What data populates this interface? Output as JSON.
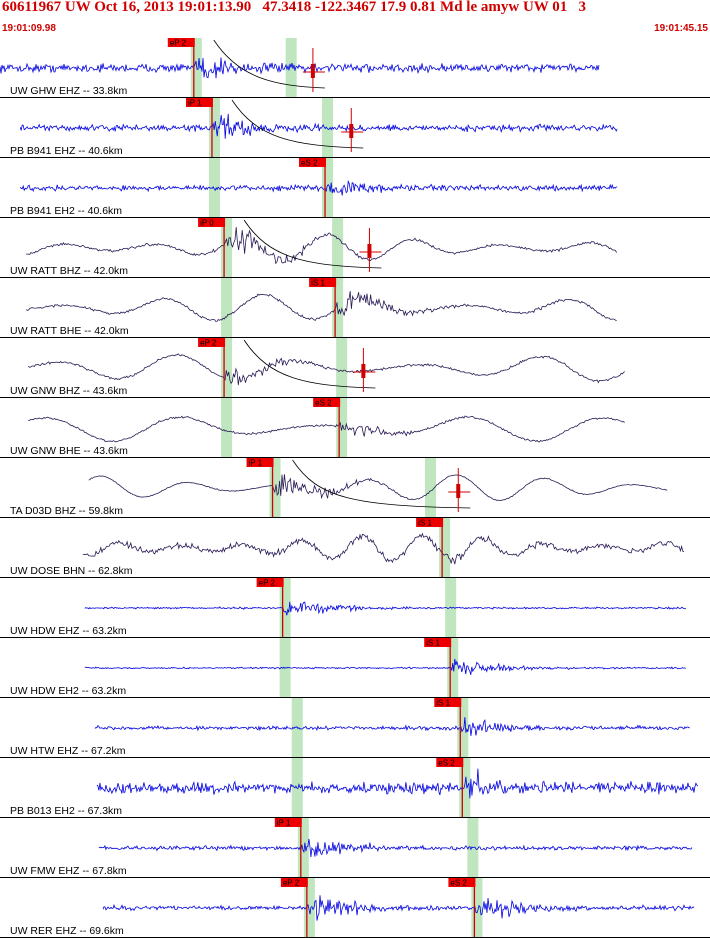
{
  "header": {
    "title": "60611967 UW Oct 16, 2013 19:01:13.90   47.3418 -122.3467 17.9 0.81 Md le amyw UW 01   3",
    "time_start": "19:01:09.98",
    "time_end": "19:01:45.15"
  },
  "colors": {
    "header_text": "#d00000",
    "trace_short_period": "#0000e0",
    "trace_broadband": "#2a1a55",
    "pick_line": "#d00000",
    "pick_box": "#ee0000",
    "window_band": "#bfe6bf"
  },
  "chart_data": {
    "type": "seismogram",
    "x_unit": "seconds after 19:01:09.98",
    "x_range": [
      0,
      35.17
    ],
    "traces": [
      {
        "label": "UW GHW EHZ -- 33.8km",
        "type": "short-period",
        "start": 0.0,
        "end": 29.7,
        "amp": 0.8,
        "bg_noise": 0.55,
        "picks": [
          {
            "label": "eP 2",
            "t": 9.6
          },
          {
            "label": "",
            "t": 15.5,
            "marker": "amplitude"
          }
        ],
        "windows": [
          9.6,
          14.3
        ],
        "curve": true
      },
      {
        "label": "PB B941 EHZ -- 40.6km",
        "type": "short-period",
        "start": 1.0,
        "end": 30.6,
        "amp": 0.75,
        "bg_noise": 0.4,
        "picks": [
          {
            "label": "iP 1",
            "t": 10.5
          },
          {
            "label": "",
            "t": 17.4,
            "marker": "amplitude"
          }
        ],
        "windows": [
          10.5,
          16.1
        ],
        "curve": true
      },
      {
        "label": "PB B941 EH2 -- 40.6km",
        "type": "short-period",
        "start": 1.0,
        "end": 30.6,
        "amp": 0.6,
        "bg_noise": 0.35,
        "picks": [
          {
            "label": "eS 2",
            "t": 16.1
          }
        ],
        "windows": [
          10.5,
          16.1
        ],
        "curve": false
      },
      {
        "label": "UW RATT BHZ -- 42.0km",
        "type": "broadband",
        "start": 1.3,
        "end": 30.6,
        "amp": 0.9,
        "bg_noise": 0.08,
        "period": 4.3,
        "picks": [
          {
            "label": "iP 0",
            "t": 11.1
          },
          {
            "label": "",
            "t": 18.3,
            "marker": "amplitude"
          }
        ],
        "windows": [
          11.1,
          16.6
        ],
        "curve": true
      },
      {
        "label": "UW RATT BHE -- 42.0km",
        "type": "broadband",
        "start": 1.3,
        "end": 30.6,
        "amp": 0.8,
        "bg_noise": 0.08,
        "period": 5.0,
        "picks": [
          {
            "label": "iS 1",
            "t": 16.6
          }
        ],
        "windows": [
          11.1,
          16.6
        ],
        "curve": false
      },
      {
        "label": "UW GNW BHZ -- 43.6km",
        "type": "broadband",
        "start": 1.4,
        "end": 31.0,
        "amp": 0.65,
        "bg_noise": 0.07,
        "period": 6.0,
        "picks": [
          {
            "label": "eP 2",
            "t": 11.1
          },
          {
            "label": "",
            "t": 18.0,
            "marker": "amplitude"
          }
        ],
        "windows": [
          11.1,
          16.8
        ],
        "curve": true
      },
      {
        "label": "UW GNW BHE -- 43.6km",
        "type": "broadband",
        "start": 1.4,
        "end": 31.0,
        "amp": 0.5,
        "bg_noise": 0.06,
        "period": 7.0,
        "picks": [
          {
            "label": "eS 2",
            "t": 16.8
          }
        ],
        "windows": [
          11.1,
          16.8
        ],
        "curve": false
      },
      {
        "label": "TA D03D BHZ -- 59.8km",
        "type": "broadband",
        "start": 4.4,
        "end": 33.1,
        "amp": 0.95,
        "bg_noise": 0.03,
        "period": 4.4,
        "picks": [
          {
            "label": "iP 1",
            "t": 13.5
          },
          {
            "label": "",
            "t": 22.7,
            "marker": "amplitude"
          }
        ],
        "windows": [
          13.5,
          21.2
        ],
        "curve": true
      },
      {
        "label": "UW DOSE BHN -- 62.8km",
        "type": "broadband",
        "start": 4.1,
        "end": 33.9,
        "amp": 0.25,
        "bg_noise": 0.18,
        "period": 3.0,
        "picks": [
          {
            "label": "iS 1",
            "t": 21.9
          }
        ],
        "windows": [
          21.9
        ],
        "curve": false
      },
      {
        "label": "UW HDW EHZ -- 63.2km",
        "type": "short-period",
        "start": 4.2,
        "end": 34.0,
        "amp": 0.6,
        "bg_noise": 0.12,
        "picks": [
          {
            "label": "eP 2",
            "t": 14.0
          }
        ],
        "windows": [
          14.0,
          22.2
        ],
        "curve": false
      },
      {
        "label": "UW HDW EH2 -- 63.2km",
        "type": "short-period",
        "start": 4.2,
        "end": 34.0,
        "amp": 0.55,
        "bg_noise": 0.1,
        "picks": [
          {
            "label": "iS 1",
            "t": 22.3
          }
        ],
        "windows": [
          14.0,
          22.3
        ],
        "curve": false
      },
      {
        "label": "UW HTW EHZ -- 67.2km",
        "type": "short-period",
        "start": 4.7,
        "end": 34.2,
        "amp": 0.6,
        "bg_noise": 0.25,
        "picks": [
          {
            "label": "iS 1",
            "t": 22.8
          }
        ],
        "windows": [
          14.6,
          22.8
        ],
        "curve": false
      },
      {
        "label": "PB B013 EH2 -- 67.3km",
        "type": "short-period",
        "start": 4.8,
        "end": 34.6,
        "amp": 0.9,
        "bg_noise": 0.75,
        "picks": [
          {
            "label": "eS 2",
            "t": 22.9
          }
        ],
        "windows": [
          14.6,
          22.9
        ],
        "curve": false
      },
      {
        "label": "UW FMW EHZ -- 67.8km",
        "type": "short-period",
        "start": 4.9,
        "end": 34.3,
        "amp": 0.75,
        "bg_noise": 0.25,
        "picks": [
          {
            "label": "iP 1",
            "t": 14.9
          }
        ],
        "windows": [
          14.9,
          23.3
        ],
        "curve": false
      },
      {
        "label": "UW RER EHZ -- 69.6km",
        "type": "short-period",
        "start": 5.1,
        "end": 34.4,
        "amp": 0.8,
        "bg_noise": 0.3,
        "picks": [
          {
            "label": "eP 2",
            "t": 15.2
          },
          {
            "label": "eS 2",
            "t": 23.5
          }
        ],
        "windows": [
          15.2,
          23.5
        ],
        "curve": false
      }
    ]
  }
}
